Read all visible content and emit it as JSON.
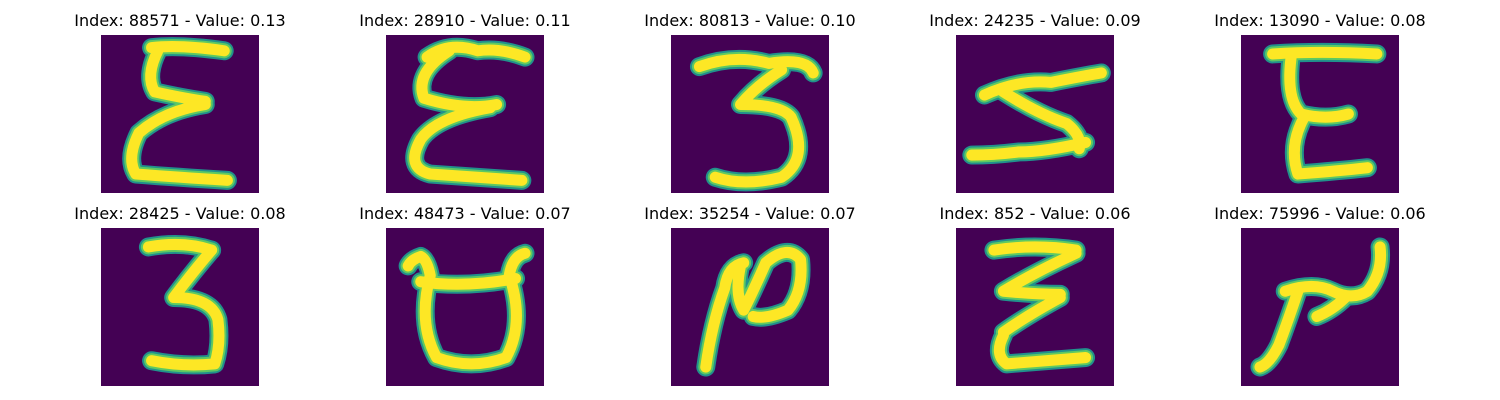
{
  "colors": {
    "background": "#440154",
    "stroke_outer": "#21918c",
    "stroke_mid": "#5ec962",
    "stroke_core": "#fde725"
  },
  "panels": [
    {
      "title": "Index: 88571 - Value: 0.13",
      "glyph": "reversed-e-tall"
    },
    {
      "title": "Index: 28910 - Value: 0.11",
      "glyph": "reversed-e-curly"
    },
    {
      "title": "Index: 80813 - Value: 0.10",
      "glyph": "three"
    },
    {
      "title": "Index: 24235 - Value: 0.09",
      "glyph": "three-tilted"
    },
    {
      "title": "Index: 13090 - Value: 0.08",
      "glyph": "e-block"
    },
    {
      "title": "Index: 28425 - Value: 0.08",
      "glyph": "three-tall"
    },
    {
      "title": "Index: 48473 - Value: 0.07",
      "glyph": "cup"
    },
    {
      "title": "Index: 35254 - Value: 0.07",
      "glyph": "n-hook"
    },
    {
      "title": "Index: 852 - Value: 0.06",
      "glyph": "zigzag"
    },
    {
      "title": "Index: 75996 - Value: 0.06",
      "glyph": "tilde-hook"
    }
  ]
}
